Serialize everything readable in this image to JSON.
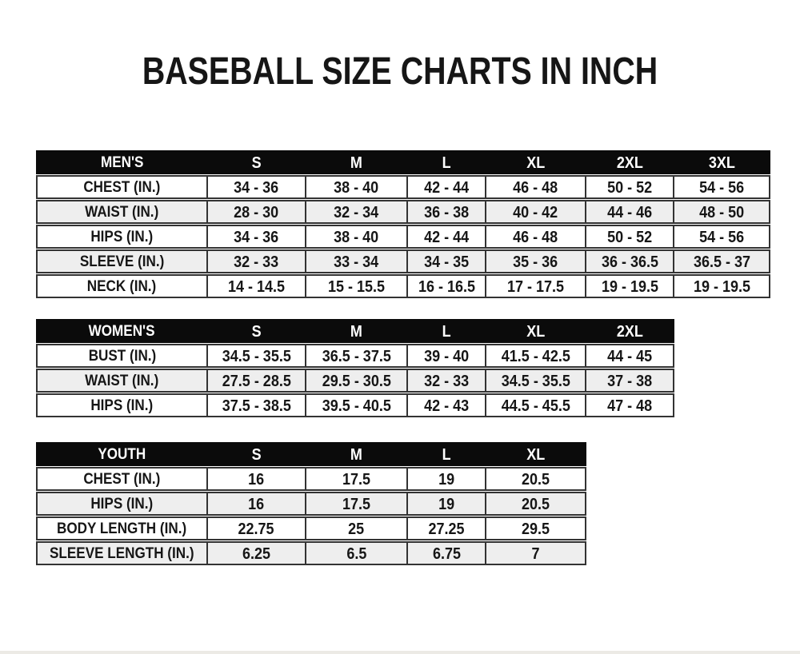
{
  "page": {
    "title": "BASEBALL SIZE CHARTS IN INCH"
  },
  "colors": {
    "page_bg": "#ffffff",
    "header_bg": "#0b0b0b",
    "header_text": "#ffffff",
    "row_bg": "#ffffff",
    "row_alt_bg": "#eeeeee",
    "border": "#333333",
    "text": "#161616"
  },
  "tables": [
    {
      "name": "mens",
      "header": [
        "MEN'S",
        "S",
        "M",
        "L",
        "XL",
        "2XL",
        "3XL"
      ],
      "rows": [
        [
          "CHEST (IN.)",
          "34 - 36",
          "38 - 40",
          "42 - 44",
          "46 - 48",
          "50 - 52",
          "54 - 56"
        ],
        [
          "WAIST (IN.)",
          "28 - 30",
          "32 - 34",
          "36 - 38",
          "40 - 42",
          "44 - 46",
          "48 - 50"
        ],
        [
          "HIPS (IN.)",
          "34 - 36",
          "38 - 40",
          "42 - 44",
          "46 - 48",
          "50 - 52",
          "54 - 56"
        ],
        [
          "SLEEVE (IN.)",
          "32 - 33",
          "33 - 34",
          "34 - 35",
          "35 - 36",
          "36 - 36.5",
          "36.5 - 37"
        ],
        [
          "NECK (IN.)",
          "14 - 14.5",
          "15 - 15.5",
          "16 - 16.5",
          "17 - 17.5",
          "19 - 19.5",
          "19 - 19.5"
        ]
      ]
    },
    {
      "name": "womens",
      "header": [
        "WOMEN'S",
        "S",
        "M",
        "L",
        "XL",
        "2XL"
      ],
      "rows": [
        [
          "BUST (IN.)",
          "34.5 - 35.5",
          "36.5 - 37.5",
          "39 - 40",
          "41.5 - 42.5",
          "44 - 45"
        ],
        [
          "WAIST (IN.)",
          "27.5 - 28.5",
          "29.5 - 30.5",
          "32 - 33",
          "34.5 - 35.5",
          "37 - 38"
        ],
        [
          "HIPS (IN.)",
          "37.5 - 38.5",
          "39.5 - 40.5",
          "42 - 43",
          "44.5 - 45.5",
          "47 - 48"
        ]
      ]
    },
    {
      "name": "youth",
      "header": [
        "YOUTH",
        "S",
        "M",
        "L",
        "XL"
      ],
      "rows": [
        [
          "CHEST (IN.)",
          "16",
          "17.5",
          "19",
          "20.5"
        ],
        [
          "HIPS (IN.)",
          "16",
          "17.5",
          "19",
          "20.5"
        ],
        [
          "BODY LENGTH (IN.)",
          "22.75",
          "25",
          "27.25",
          "29.5"
        ],
        [
          "SLEEVE LENGTH (IN.)",
          "6.25",
          "6.5",
          "6.75",
          "7"
        ]
      ]
    }
  ]
}
